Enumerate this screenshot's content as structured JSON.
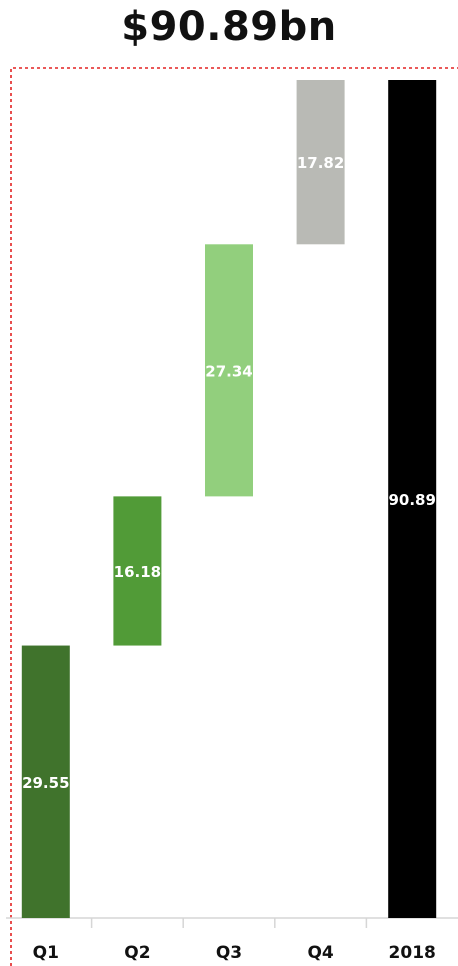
{
  "title": "$90.89bn",
  "chart_data": {
    "type": "bar",
    "subtype": "waterfall",
    "categories": [
      "Q1",
      "Q2",
      "Q3",
      "Q4",
      "2018"
    ],
    "values": [
      29.55,
      16.18,
      27.34,
      17.82,
      90.89
    ],
    "is_total": [
      false,
      false,
      false,
      false,
      true
    ],
    "colors": [
      "#40732C",
      "#519B37",
      "#92CF7D",
      "#B9BAB5",
      "#000000"
    ],
    "label_colors": [
      "#FFFFFF",
      "#FFFFFF",
      "#FFFFFF",
      "#FFFFFF",
      "#FFFFFF"
    ],
    "ylim": [
      0,
      90.89
    ],
    "grid": false,
    "legend": "none",
    "annotation_line_color": "#E32222"
  }
}
